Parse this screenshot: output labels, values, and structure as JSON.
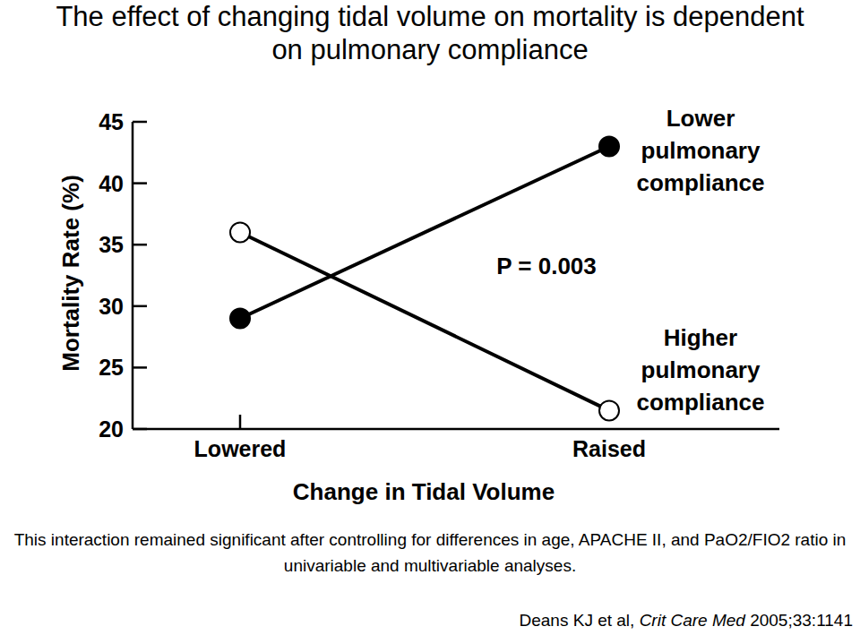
{
  "chart_data": {
    "type": "line",
    "title": "The effect of changing tidal volume on mortality is dependent on pulmonary compliance",
    "x_label": "Change in Tidal Volume",
    "y_label": "Mortality Rate (%)",
    "categories": [
      "Lowered",
      "Raised"
    ],
    "series": [
      {
        "name": "Lower pulmonary compliance",
        "color": "#000000",
        "marker": "circle",
        "values": [
          29,
          43
        ]
      },
      {
        "name": "Higher pulmonary compliance",
        "color": "#000000",
        "marker": "circle-open",
        "values": [
          36,
          21.5
        ]
      }
    ],
    "ylim": [
      20,
      45
    ],
    "yticks": [
      20,
      25,
      30,
      35,
      40,
      45
    ],
    "grid": false,
    "annotation": "P = 0.003",
    "note": "This interaction remained significant after controlling for differences in age, APACHE II, and PaO2/FIO2 ratio in univariable and multivariable analyses.",
    "citation": {
      "authors": "Deans KJ et al,",
      "journal": "Crit Care Med",
      "reference": "2005;33:1141"
    }
  }
}
